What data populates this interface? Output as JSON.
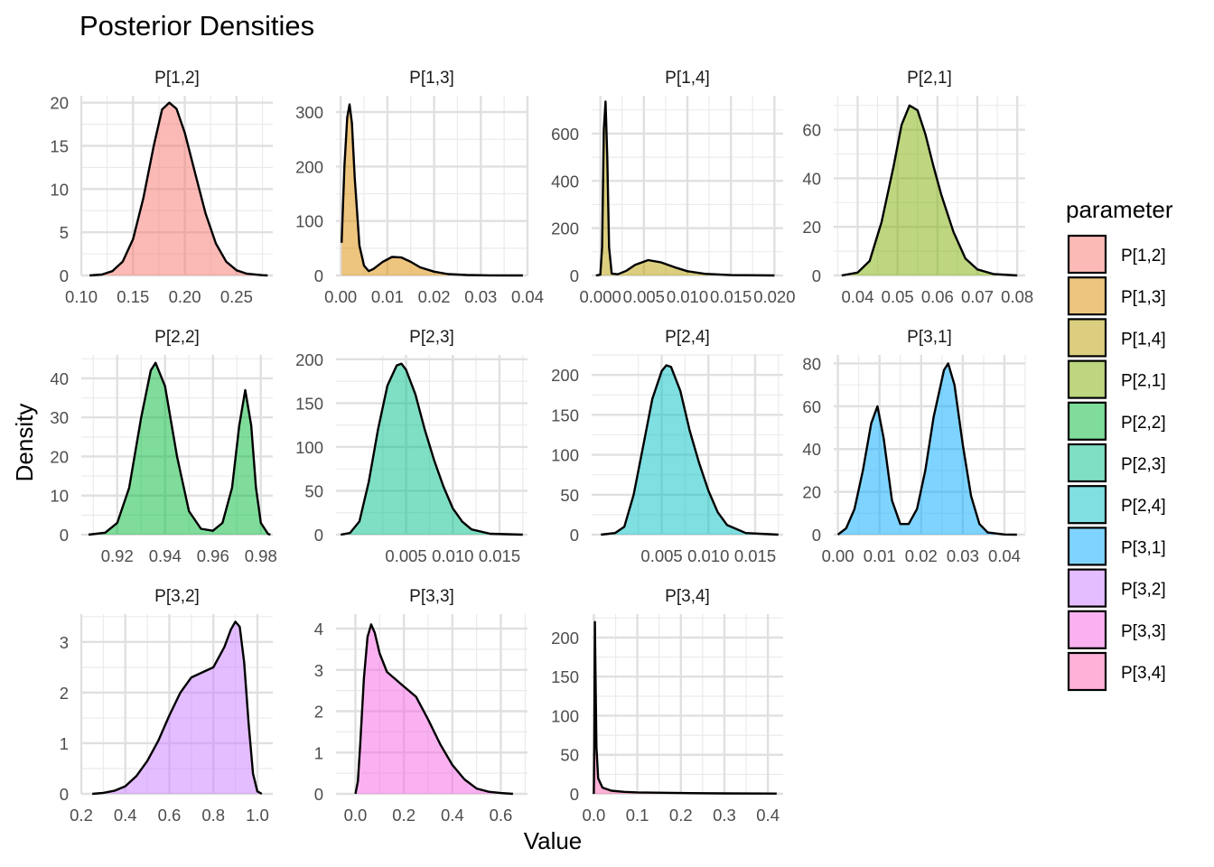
{
  "title": "Posterior Densities",
  "chart_data": {
    "type": "area",
    "subtype": "faceted density",
    "title": "Posterior Densities",
    "xlabel": "Value",
    "ylabel": "Density",
    "legend": {
      "title": "parameter",
      "placement": "right"
    },
    "grid": true,
    "series": [
      {
        "name": "P[1,2]",
        "color": "#F8766D",
        "xlim": [
          0.1,
          0.285
        ],
        "ylim": [
          0,
          20.8
        ],
        "x_ticks": [
          "0.10",
          "0.15",
          "0.20",
          "0.25"
        ],
        "x_tick_values": [
          0.1,
          0.15,
          0.2,
          0.25
        ],
        "y_ticks": [
          "0",
          "5",
          "10",
          "15",
          "20"
        ],
        "y_tick_values": [
          0,
          5,
          10,
          15,
          20
        ],
        "points": [
          [
            0.108,
            0
          ],
          [
            0.12,
            0.1
          ],
          [
            0.13,
            0.5
          ],
          [
            0.14,
            1.6
          ],
          [
            0.15,
            4.2
          ],
          [
            0.16,
            9.0
          ],
          [
            0.17,
            15.0
          ],
          [
            0.178,
            19.2
          ],
          [
            0.185,
            20.0
          ],
          [
            0.192,
            19.3
          ],
          [
            0.2,
            16.5
          ],
          [
            0.21,
            11.8
          ],
          [
            0.22,
            7.2
          ],
          [
            0.23,
            3.7
          ],
          [
            0.24,
            1.6
          ],
          [
            0.25,
            0.6
          ],
          [
            0.26,
            0.2
          ],
          [
            0.275,
            0.03
          ],
          [
            0.28,
            0
          ]
        ]
      },
      {
        "name": "P[1,3]",
        "color": "#DE8C00",
        "xlim": [
          -0.001,
          0.04
        ],
        "ylim": [
          0,
          330
        ],
        "x_ticks": [
          "0.00",
          "0.01",
          "0.02",
          "0.03",
          "0.04"
        ],
        "x_tick_values": [
          0.0,
          0.01,
          0.02,
          0.03,
          0.04
        ],
        "y_ticks": [
          "0",
          "100",
          "200",
          "300"
        ],
        "y_tick_values": [
          0,
          100,
          200,
          300
        ],
        "points": [
          [
            0.0002,
            60
          ],
          [
            0.0008,
            200
          ],
          [
            0.0014,
            290
          ],
          [
            0.0019,
            314
          ],
          [
            0.0024,
            280
          ],
          [
            0.003,
            180
          ],
          [
            0.004,
            55
          ],
          [
            0.005,
            18
          ],
          [
            0.006,
            8
          ],
          [
            0.007,
            12
          ],
          [
            0.009,
            25
          ],
          [
            0.011,
            34
          ],
          [
            0.013,
            33
          ],
          [
            0.015,
            25
          ],
          [
            0.017,
            15
          ],
          [
            0.02,
            7
          ],
          [
            0.023,
            2.5
          ],
          [
            0.027,
            0.8
          ],
          [
            0.032,
            0.2
          ],
          [
            0.039,
            0
          ]
        ]
      },
      {
        "name": "P[1,4]",
        "color": "#B79F00",
        "xlim": [
          -0.001,
          0.021
        ],
        "ylim": [
          0,
          760
        ],
        "x_ticks": [
          "0.000",
          "0.005",
          "0.010",
          "0.015",
          "0.020"
        ],
        "x_tick_values": [
          0.0,
          0.005,
          0.01,
          0.015,
          0.02
        ],
        "y_ticks": [
          "0",
          "200",
          "400",
          "600"
        ],
        "y_tick_values": [
          0,
          200,
          400,
          600
        ],
        "points": [
          [
            -0.0005,
            0
          ],
          [
            0,
            3
          ],
          [
            0.0002,
            120
          ],
          [
            0.0004,
            620
          ],
          [
            0.0006,
            735
          ],
          [
            0.0008,
            500
          ],
          [
            0.001,
            120
          ],
          [
            0.0013,
            8
          ],
          [
            0.002,
            5
          ],
          [
            0.003,
            20
          ],
          [
            0.004,
            45
          ],
          [
            0.0055,
            65
          ],
          [
            0.007,
            55
          ],
          [
            0.0085,
            35
          ],
          [
            0.01,
            18
          ],
          [
            0.012,
            7
          ],
          [
            0.015,
            1.5
          ],
          [
            0.02,
            0
          ]
        ]
      },
      {
        "name": "P[2,1]",
        "color": "#7CAE00",
        "xlim": [
          0.034,
          0.082
        ],
        "ylim": [
          0,
          74
        ],
        "x_ticks": [
          "0.04",
          "0.05",
          "0.06",
          "0.07",
          "0.08"
        ],
        "x_tick_values": [
          0.04,
          0.05,
          0.06,
          0.07,
          0.08
        ],
        "y_ticks": [
          "0",
          "20",
          "40",
          "60"
        ],
        "y_tick_values": [
          0,
          20,
          40,
          60
        ],
        "points": [
          [
            0.036,
            0
          ],
          [
            0.04,
            1.2
          ],
          [
            0.043,
            6
          ],
          [
            0.046,
            22
          ],
          [
            0.049,
            45
          ],
          [
            0.051,
            62
          ],
          [
            0.053,
            70
          ],
          [
            0.055,
            68
          ],
          [
            0.057,
            58
          ],
          [
            0.059,
            45
          ],
          [
            0.061,
            33
          ],
          [
            0.064,
            18
          ],
          [
            0.067,
            7
          ],
          [
            0.07,
            2.5
          ],
          [
            0.074,
            0.6
          ],
          [
            0.08,
            0
          ]
        ]
      },
      {
        "name": "P[2,2]",
        "color": "#00BA38",
        "xlim": [
          0.905,
          0.985
        ],
        "ylim": [
          0,
          46
        ],
        "x_ticks": [
          "0.92",
          "0.94",
          "0.96",
          "0.98"
        ],
        "x_tick_values": [
          0.92,
          0.94,
          0.96,
          0.98
        ],
        "y_ticks": [
          "0",
          "10",
          "20",
          "30",
          "40"
        ],
        "y_tick_values": [
          0,
          10,
          20,
          30,
          40
        ],
        "points": [
          [
            0.908,
            0
          ],
          [
            0.915,
            0.5
          ],
          [
            0.92,
            3
          ],
          [
            0.925,
            12
          ],
          [
            0.93,
            30
          ],
          [
            0.934,
            42
          ],
          [
            0.936,
            44
          ],
          [
            0.94,
            38
          ],
          [
            0.945,
            20
          ],
          [
            0.95,
            6
          ],
          [
            0.955,
            1.5
          ],
          [
            0.96,
            1
          ],
          [
            0.964,
            3
          ],
          [
            0.968,
            12
          ],
          [
            0.971,
            28
          ],
          [
            0.9735,
            37
          ],
          [
            0.976,
            28
          ],
          [
            0.978,
            12
          ],
          [
            0.98,
            3
          ],
          [
            0.983,
            0.2
          ],
          [
            0.984,
            0
          ]
        ]
      },
      {
        "name": "P[2,3]",
        "color": "#00C08B",
        "xlim": [
          -0.0025,
          0.018
        ],
        "ylim": [
          0,
          205
        ],
        "x_ticks": [
          "0.005",
          "0.010",
          "0.015"
        ],
        "x_tick_values": [
          0.005,
          0.01,
          0.015
        ],
        "y_ticks": [
          "0",
          "50",
          "100",
          "150",
          "200"
        ],
        "y_tick_values": [
          0,
          50,
          100,
          150,
          200
        ],
        "points": [
          [
            -0.002,
            0
          ],
          [
            -0.001,
            2
          ],
          [
            0,
            15
          ],
          [
            0.001,
            60
          ],
          [
            0.002,
            120
          ],
          [
            0.003,
            170
          ],
          [
            0.004,
            193
          ],
          [
            0.0045,
            195
          ],
          [
            0.005,
            188
          ],
          [
            0.006,
            160
          ],
          [
            0.007,
            120
          ],
          [
            0.008,
            85
          ],
          [
            0.009,
            55
          ],
          [
            0.01,
            30
          ],
          [
            0.011,
            15
          ],
          [
            0.012,
            6
          ],
          [
            0.014,
            1
          ],
          [
            0.0175,
            0
          ]
        ]
      },
      {
        "name": "P[2,4]",
        "color": "#00BFC4",
        "xlim": [
          -0.0025,
          0.018
        ],
        "ylim": [
          0,
          225
        ],
        "x_ticks": [
          "0.005",
          "0.010",
          "0.015"
        ],
        "x_tick_values": [
          0.005,
          0.01,
          0.015
        ],
        "y_ticks": [
          "0",
          "50",
          "100",
          "150",
          "200"
        ],
        "y_tick_values": [
          0,
          50,
          100,
          150,
          200
        ],
        "points": [
          [
            -0.0015,
            0
          ],
          [
            0,
            2
          ],
          [
            0.001,
            10
          ],
          [
            0.002,
            50
          ],
          [
            0.003,
            110
          ],
          [
            0.004,
            170
          ],
          [
            0.005,
            205
          ],
          [
            0.0055,
            212
          ],
          [
            0.006,
            210
          ],
          [
            0.007,
            180
          ],
          [
            0.008,
            130
          ],
          [
            0.009,
            90
          ],
          [
            0.01,
            55
          ],
          [
            0.011,
            28
          ],
          [
            0.012,
            12
          ],
          [
            0.014,
            2
          ],
          [
            0.0175,
            0
          ]
        ]
      },
      {
        "name": "P[3,1]",
        "color": "#00A9FF",
        "xlim": [
          -0.001,
          0.045
        ],
        "ylim": [
          0,
          84
        ],
        "x_ticks": [
          "0.00",
          "0.01",
          "0.02",
          "0.03",
          "0.04"
        ],
        "x_tick_values": [
          0.0,
          0.01,
          0.02,
          0.03,
          0.04
        ],
        "y_ticks": [
          "0",
          "20",
          "40",
          "60",
          "80"
        ],
        "y_tick_values": [
          0,
          20,
          40,
          60,
          80
        ],
        "points": [
          [
            0,
            0
          ],
          [
            0.002,
            3
          ],
          [
            0.004,
            12
          ],
          [
            0.006,
            30
          ],
          [
            0.008,
            52
          ],
          [
            0.0095,
            60
          ],
          [
            0.011,
            45
          ],
          [
            0.013,
            16
          ],
          [
            0.015,
            5
          ],
          [
            0.017,
            5
          ],
          [
            0.019,
            12
          ],
          [
            0.021,
            30
          ],
          [
            0.023,
            55
          ],
          [
            0.0255,
            77
          ],
          [
            0.0265,
            80
          ],
          [
            0.028,
            70
          ],
          [
            0.03,
            42
          ],
          [
            0.032,
            18
          ],
          [
            0.034,
            5
          ],
          [
            0.036,
            1
          ],
          [
            0.04,
            0.1
          ],
          [
            0.043,
            0
          ]
        ]
      },
      {
        "name": "P[3,2]",
        "color": "#C77CFF",
        "xlim": [
          0.2,
          1.07
        ],
        "ylim": [
          0,
          3.55
        ],
        "x_ticks": [
          "0.2",
          "0.4",
          "0.6",
          "0.8",
          "1.0"
        ],
        "x_tick_values": [
          0.2,
          0.4,
          0.6,
          0.8,
          1.0
        ],
        "y_ticks": [
          "0",
          "1",
          "2",
          "3"
        ],
        "y_tick_values": [
          0,
          1,
          2,
          3
        ],
        "points": [
          [
            0.25,
            0
          ],
          [
            0.3,
            0.02
          ],
          [
            0.35,
            0.06
          ],
          [
            0.4,
            0.15
          ],
          [
            0.45,
            0.35
          ],
          [
            0.5,
            0.65
          ],
          [
            0.55,
            1.05
          ],
          [
            0.6,
            1.55
          ],
          [
            0.65,
            2.0
          ],
          [
            0.7,
            2.3
          ],
          [
            0.75,
            2.4
          ],
          [
            0.8,
            2.5
          ],
          [
            0.85,
            2.9
          ],
          [
            0.88,
            3.25
          ],
          [
            0.9,
            3.4
          ],
          [
            0.92,
            3.3
          ],
          [
            0.94,
            2.6
          ],
          [
            0.96,
            1.4
          ],
          [
            0.98,
            0.4
          ],
          [
            1.0,
            0.05
          ],
          [
            1.02,
            0
          ]
        ]
      },
      {
        "name": "P[3,3]",
        "color": "#F564E3",
        "xlim": [
          -0.08,
          0.71
        ],
        "ylim": [
          0,
          4.35
        ],
        "x_ticks": [
          "0.0",
          "0.2",
          "0.4",
          "0.6"
        ],
        "x_tick_values": [
          0.0,
          0.2,
          0.4,
          0.6
        ],
        "y_ticks": [
          "0",
          "1",
          "2",
          "3",
          "4"
        ],
        "y_tick_values": [
          0,
          1,
          2,
          3,
          4
        ],
        "points": [
          [
            0.0,
            0
          ],
          [
            0.01,
            0.3
          ],
          [
            0.02,
            1.2
          ],
          [
            0.035,
            2.8
          ],
          [
            0.05,
            3.8
          ],
          [
            0.065,
            4.1
          ],
          [
            0.08,
            3.9
          ],
          [
            0.1,
            3.4
          ],
          [
            0.13,
            2.95
          ],
          [
            0.16,
            2.8
          ],
          [
            0.2,
            2.6
          ],
          [
            0.25,
            2.35
          ],
          [
            0.3,
            1.8
          ],
          [
            0.35,
            1.2
          ],
          [
            0.4,
            0.7
          ],
          [
            0.45,
            0.35
          ],
          [
            0.5,
            0.13
          ],
          [
            0.55,
            0.05
          ],
          [
            0.6,
            0.02
          ],
          [
            0.65,
            0
          ]
        ]
      },
      {
        "name": "P[3,4]",
        "color": "#FF64B0",
        "xlim": [
          -0.005,
          0.435
        ],
        "ylim": [
          0,
          230
        ],
        "x_ticks": [
          "0.0",
          "0.1",
          "0.2",
          "0.3",
          "0.4"
        ],
        "x_tick_values": [
          0.0,
          0.1,
          0.2,
          0.3,
          0.4
        ],
        "y_ticks": [
          "0",
          "50",
          "100",
          "150",
          "200"
        ],
        "y_tick_values": [
          0,
          50,
          100,
          150,
          200
        ],
        "points": [
          [
            0.0,
            0
          ],
          [
            0.001,
            60
          ],
          [
            0.0025,
            220
          ],
          [
            0.004,
            150
          ],
          [
            0.006,
            60
          ],
          [
            0.01,
            20
          ],
          [
            0.02,
            8
          ],
          [
            0.04,
            4
          ],
          [
            0.07,
            2.5
          ],
          [
            0.1,
            1.8
          ],
          [
            0.2,
            1
          ],
          [
            0.3,
            0.6
          ],
          [
            0.42,
            0.4
          ]
        ]
      }
    ]
  }
}
